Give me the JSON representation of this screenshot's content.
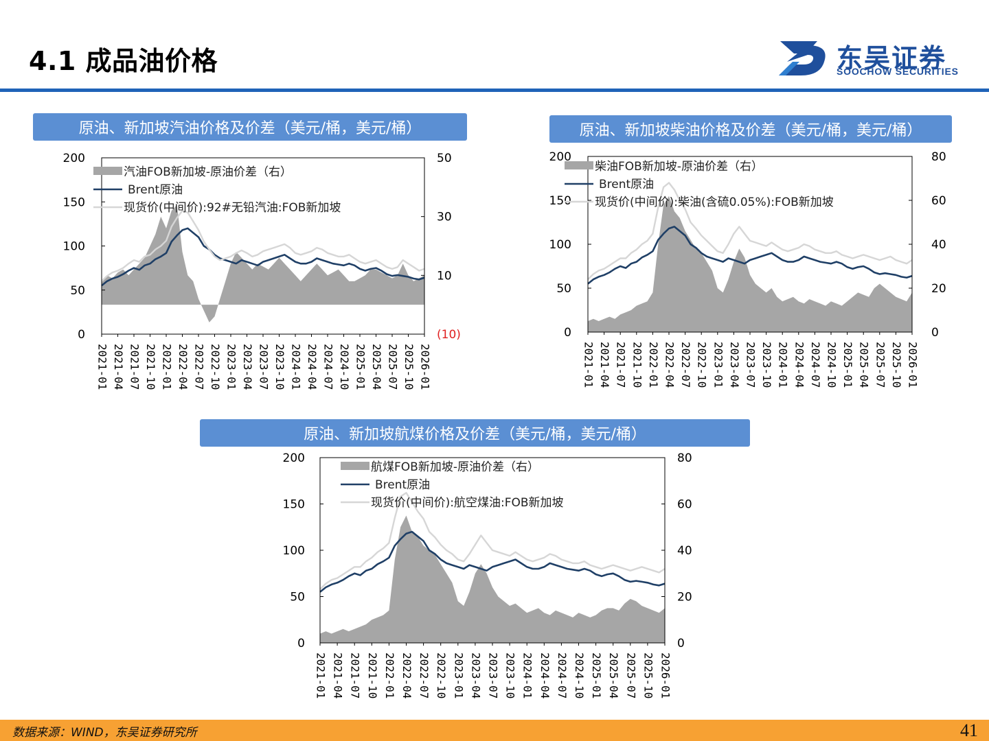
{
  "header": {
    "title": "4.1 成品油价格",
    "logo_cn": "东吴证券",
    "logo_en": "SOOCHOW SECURITIES"
  },
  "footer": {
    "source": "数据来源：WIND，东吴证券研究所",
    "page_number": "41"
  },
  "colors": {
    "accent_blue": "#1f63b8",
    "panel_title_bg": "#5b8fd3",
    "spread_fill": "#a6a6a6",
    "brent_line": "#1f3f66",
    "product_line": "#d6d6d6",
    "negative_label": "#e02020",
    "footer_bg": "#f7a133"
  },
  "chart_data": [
    {
      "type": "line",
      "title": "原油、新加坡汽油价格及价差（美元/桶，美元/桶）",
      "left_axis": {
        "ylim": [
          0,
          200
        ],
        "ticks": [
          "200",
          "150",
          "100",
          "50",
          "0"
        ]
      },
      "right_axis": {
        "ylim": [
          -10,
          50
        ],
        "ticks": [
          "50",
          "30",
          "10",
          "(10)"
        ],
        "tick_values": [
          50,
          30,
          10,
          -10
        ]
      },
      "x_ticks": [
        "2021-01",
        "2021-04",
        "2021-07",
        "2021-10",
        "2022-01",
        "2022-04",
        "2022-07",
        "2022-10",
        "2023-01",
        "2023-04",
        "2023-07",
        "2023-10",
        "2024-01",
        "2024-04",
        "2024-07",
        "2024-10",
        "2025-01",
        "2025-04",
        "2025-07",
        "2025-10",
        "2026-01"
      ],
      "legend_position": "top-left",
      "grid": false,
      "series": [
        {
          "name": "汽油FOB新加坡-原油价差（右）",
          "kind": "area",
          "axis": "right",
          "values": [
            8,
            10,
            9,
            11,
            12,
            10,
            12,
            14,
            16,
            20,
            24,
            30,
            26,
            32,
            34,
            18,
            10,
            8,
            2,
            -2,
            -6,
            -4,
            2,
            8,
            14,
            18,
            16,
            14,
            12,
            14,
            13,
            12,
            14,
            16,
            14,
            12,
            10,
            8,
            10,
            12,
            14,
            12,
            10,
            11,
            12,
            10,
            8,
            8,
            9,
            10,
            12,
            12,
            11,
            10,
            9,
            10,
            14,
            10,
            8,
            9,
            10
          ]
        },
        {
          "name": "Brent原油",
          "kind": "line",
          "axis": "left",
          "values": [
            55,
            60,
            63,
            65,
            68,
            72,
            75,
            73,
            78,
            80,
            85,
            88,
            92,
            105,
            112,
            118,
            120,
            115,
            110,
            100,
            96,
            90,
            86,
            84,
            82,
            80,
            84,
            82,
            80,
            78,
            82,
            84,
            86,
            88,
            90,
            86,
            82,
            80,
            80,
            82,
            86,
            84,
            82,
            80,
            79,
            78,
            80,
            78,
            74,
            72,
            74,
            75,
            72,
            68,
            66,
            67,
            66,
            65,
            63,
            62,
            64
          ]
        },
        {
          "name": "现货价(中间价):92#无铅汽油:FOB新加坡",
          "kind": "line",
          "axis": "left",
          "values": [
            60,
            66,
            70,
            72,
            75,
            80,
            84,
            82,
            88,
            90,
            96,
            100,
            106,
            122,
            132,
            140,
            138,
            128,
            118,
            105,
            96,
            88,
            84,
            86,
            88,
            92,
            95,
            92,
            88,
            90,
            94,
            96,
            98,
            100,
            102,
            98,
            92,
            90,
            92,
            94,
            98,
            96,
            92,
            90,
            88,
            88,
            90,
            86,
            82,
            80,
            82,
            84,
            80,
            76,
            74,
            76,
            84,
            80,
            76,
            72,
            74
          ]
        }
      ]
    },
    {
      "type": "line",
      "title": "原油、新加坡柴油价格及价差（美元/桶，美元/桶）",
      "left_axis": {
        "ylim": [
          0,
          200
        ],
        "ticks": [
          "200",
          "150",
          "100",
          "50",
          "0"
        ]
      },
      "right_axis": {
        "ylim": [
          0,
          80
        ],
        "ticks": [
          "80",
          "60",
          "40",
          "20",
          "0"
        ],
        "tick_values": [
          80,
          60,
          40,
          20,
          0
        ]
      },
      "x_ticks": [
        "2021-01",
        "2021-04",
        "2021-07",
        "2021-10",
        "2022-01",
        "2022-04",
        "2022-07",
        "2022-10",
        "2023-01",
        "2023-04",
        "2023-07",
        "2023-10",
        "2024-01",
        "2024-04",
        "2024-07",
        "2024-10",
        "2025-01",
        "2025-04",
        "2025-07",
        "2025-10",
        "2026-01"
      ],
      "legend_position": "top-left",
      "grid": false,
      "series": [
        {
          "name": "柴油FOB新加坡-原油价差（右）",
          "kind": "area",
          "axis": "right",
          "values": [
            5,
            6,
            5,
            6,
            7,
            6,
            8,
            9,
            10,
            12,
            13,
            14,
            18,
            40,
            58,
            62,
            55,
            52,
            46,
            42,
            38,
            36,
            32,
            28,
            20,
            18,
            24,
            32,
            38,
            34,
            26,
            22,
            20,
            18,
            20,
            16,
            14,
            15,
            16,
            14,
            13,
            15,
            14,
            13,
            12,
            14,
            13,
            12,
            14,
            16,
            18,
            17,
            16,
            20,
            22,
            20,
            18,
            16,
            15,
            14,
            18
          ]
        },
        {
          "name": "Brent原油",
          "kind": "line",
          "axis": "left",
          "values": [
            55,
            60,
            63,
            65,
            68,
            72,
            75,
            73,
            78,
            80,
            85,
            88,
            92,
            105,
            112,
            118,
            120,
            115,
            110,
            100,
            96,
            90,
            86,
            84,
            82,
            80,
            84,
            82,
            80,
            78,
            82,
            84,
            86,
            88,
            90,
            86,
            82,
            80,
            80,
            82,
            86,
            84,
            82,
            80,
            79,
            78,
            80,
            78,
            74,
            72,
            74,
            75,
            72,
            68,
            66,
            67,
            66,
            65,
            63,
            62,
            64
          ]
        },
        {
          "name": "现货价(中间价):柴油(含硫0.05%):FOB新加坡",
          "kind": "line",
          "axis": "left",
          "values": [
            60,
            66,
            70,
            72,
            76,
            80,
            84,
            84,
            90,
            94,
            100,
            104,
            112,
            142,
            165,
            170,
            162,
            150,
            140,
            125,
            118,
            110,
            104,
            98,
            92,
            90,
            100,
            112,
            120,
            112,
            104,
            102,
            100,
            98,
            102,
            98,
            94,
            92,
            94,
            96,
            100,
            98,
            94,
            92,
            90,
            90,
            92,
            88,
            86,
            84,
            86,
            88,
            86,
            84,
            82,
            84,
            86,
            82,
            80,
            78,
            82
          ]
        }
      ]
    },
    {
      "type": "line",
      "title": "原油、新加坡航煤价格及价差（美元/桶，美元/桶）",
      "left_axis": {
        "ylim": [
          0,
          200
        ],
        "ticks": [
          "200",
          "150",
          "100",
          "50",
          "0"
        ]
      },
      "right_axis": {
        "ylim": [
          0,
          80
        ],
        "ticks": [
          "80",
          "60",
          "40",
          "20",
          "0"
        ],
        "tick_values": [
          80,
          60,
          40,
          20,
          0
        ]
      },
      "x_ticks": [
        "2021-01",
        "2021-04",
        "2021-07",
        "2021-10",
        "2022-01",
        "2022-04",
        "2022-07",
        "2022-10",
        "2023-01",
        "2023-04",
        "2023-07",
        "2023-10",
        "2024-01",
        "2024-04",
        "2024-07",
        "2024-10",
        "2025-01",
        "2025-04",
        "2025-07",
        "2025-10",
        "2026-01"
      ],
      "legend_position": "top-left",
      "grid": false,
      "series": [
        {
          "name": "航煤FOB新加坡-原油价差（右）",
          "kind": "area",
          "axis": "right",
          "values": [
            4,
            5,
            4,
            5,
            6,
            5,
            6,
            7,
            8,
            10,
            11,
            12,
            14,
            36,
            50,
            55,
            48,
            46,
            42,
            40,
            38,
            34,
            30,
            26,
            18,
            16,
            22,
            30,
            34,
            30,
            24,
            20,
            18,
            16,
            17,
            15,
            13,
            14,
            15,
            13,
            12,
            14,
            13,
            12,
            11,
            13,
            12,
            11,
            12,
            14,
            15,
            15,
            14,
            17,
            19,
            18,
            16,
            15,
            14,
            13,
            15
          ]
        },
        {
          "name": "Brent原油",
          "kind": "line",
          "axis": "left",
          "values": [
            55,
            60,
            63,
            65,
            68,
            72,
            75,
            73,
            78,
            80,
            85,
            88,
            92,
            105,
            112,
            118,
            120,
            115,
            110,
            100,
            96,
            90,
            86,
            84,
            82,
            80,
            84,
            82,
            80,
            78,
            82,
            84,
            86,
            88,
            90,
            86,
            82,
            80,
            80,
            82,
            86,
            84,
            82,
            80,
            79,
            78,
            80,
            78,
            74,
            72,
            74,
            75,
            72,
            68,
            66,
            67,
            66,
            65,
            63,
            62,
            64
          ]
        },
        {
          "name": "现货价(中间价):航空煤油:FOB新加坡",
          "kind": "line",
          "axis": "left",
          "values": [
            58,
            64,
            68,
            70,
            74,
            78,
            82,
            82,
            88,
            92,
            98,
            102,
            108,
            135,
            158,
            162,
            152,
            142,
            134,
            120,
            114,
            106,
            100,
            96,
            90,
            88,
            96,
            106,
            116,
            108,
            100,
            98,
            96,
            94,
            98,
            94,
            90,
            88,
            90,
            92,
            96,
            94,
            90,
            88,
            86,
            86,
            88,
            84,
            82,
            80,
            82,
            84,
            82,
            80,
            78,
            80,
            82,
            80,
            78,
            76,
            80
          ]
        }
      ]
    }
  ]
}
